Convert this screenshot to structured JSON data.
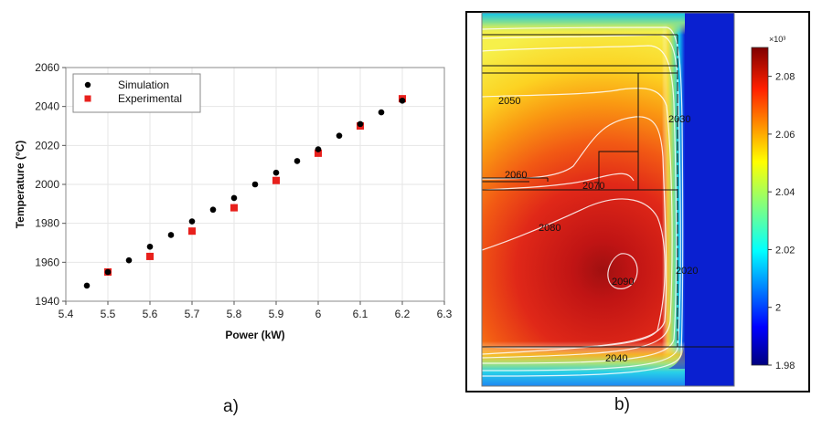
{
  "chart_data": [
    {
      "type": "scatter",
      "panel_label": "a)",
      "title": "",
      "xlabel": "Power (kW)",
      "ylabel": "Temperature (°C)",
      "xlim": [
        5.4,
        6.3
      ],
      "ylim": [
        1940,
        2060
      ],
      "xticks": [
        "5.4",
        "5.5",
        "5.6",
        "5.7",
        "5.8",
        "5.9",
        "6",
        "6.1",
        "6.2",
        "6.3"
      ],
      "yticks": [
        "1940",
        "1960",
        "1980",
        "2000",
        "2020",
        "2040",
        "2060"
      ],
      "legend_position": "top-left",
      "series": [
        {
          "name": "Simulation",
          "marker": "circle",
          "color": "#000000",
          "x": [
            5.45,
            5.5,
            5.55,
            5.6,
            5.65,
            5.7,
            5.75,
            5.8,
            5.85,
            5.9,
            5.95,
            6.0,
            6.05,
            6.1,
            6.15,
            6.2
          ],
          "y": [
            1948,
            1955,
            1961,
            1968,
            1974,
            1981,
            1987,
            1993,
            2000,
            2006,
            2012,
            2018,
            2025,
            2031,
            2037,
            2043
          ]
        },
        {
          "name": "Experimental",
          "marker": "square",
          "color": "#e8201c",
          "x": [
            5.5,
            5.6,
            5.7,
            5.8,
            5.9,
            6.0,
            6.1,
            6.2
          ],
          "y": [
            1955,
            1963,
            1976,
            1988,
            2002,
            2016,
            2030,
            2044
          ]
        }
      ]
    },
    {
      "type": "heatmap",
      "panel_label": "b)",
      "title": "",
      "colorbar_multiplier": "×10³",
      "colorbar_range": [
        1.98,
        2.09
      ],
      "colorbar_ticks": [
        "1.98",
        "2",
        "2.02",
        "2.04",
        "2.06",
        "2.08"
      ],
      "colorbar_tick_values": [
        1.98,
        2.0,
        2.02,
        2.04,
        2.06,
        2.08
      ],
      "hot_spot_value": 2.09,
      "contour_labels": [
        "2050",
        "2030",
        "2060",
        "2070",
        "2080",
        "2090",
        "2020",
        "2040"
      ]
    }
  ]
}
